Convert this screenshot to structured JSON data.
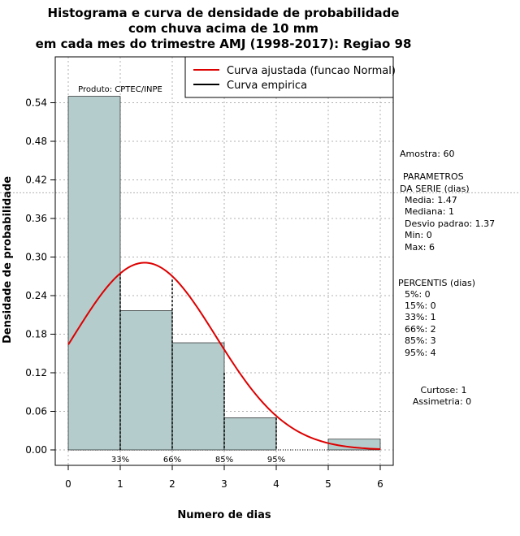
{
  "chart_data": {
    "type": "bar",
    "title_lines": [
      "Histograma e curva de densidade de probabilidade",
      "com chuva acima de 10 mm",
      "em cada mes do trimestre AMJ (1998-2017): Regiao 98"
    ],
    "xlabel": "Numero de dias",
    "ylabel": "Densidade de probabilidade",
    "xlim": [
      0,
      6
    ],
    "ylim": [
      0,
      0.6
    ],
    "x_ticks": [
      "0",
      "1",
      "2",
      "3",
      "4",
      "5",
      "6"
    ],
    "y_ticks": [
      "0.00",
      "0.06",
      "0.12",
      "0.18",
      "0.24",
      "0.30",
      "0.36",
      "0.42",
      "0.48",
      "0.54"
    ],
    "bins": [
      {
        "x0": 0,
        "x1": 1,
        "density": 0.55
      },
      {
        "x0": 1,
        "x1": 2,
        "density": 0.2167
      },
      {
        "x0": 2,
        "x1": 3,
        "density": 0.1667
      },
      {
        "x0": 3,
        "x1": 4,
        "density": 0.05
      },
      {
        "x0": 4,
        "x1": 5,
        "density": 0.0
      },
      {
        "x0": 5,
        "x1": 6,
        "density": 0.0167
      }
    ],
    "normal_fit": {
      "mean": 1.47,
      "sd": 1.37
    },
    "empirical_curve": [
      {
        "x": 1,
        "y": 0.275
      },
      {
        "x": 2,
        "y": 0.265
      },
      {
        "x": 3,
        "y": 0.12
      },
      {
        "x": 4,
        "y": 0.05
      }
    ],
    "percentile_markers": [
      {
        "x": 1,
        "label": "33%"
      },
      {
        "x": 2,
        "label": "66%"
      },
      {
        "x": 3,
        "label": "85%"
      },
      {
        "x": 4,
        "label": "95%"
      }
    ],
    "h_reference_line": 0.4,
    "grid": true,
    "colors": {
      "bar_fill": "#b5cccc",
      "fit_line": "#dd0000",
      "empirical_line": "#000000",
      "grid": "#b0b0b0"
    },
    "legend": {
      "placement": "top-right",
      "entries": [
        {
          "label": "Curva ajustada (funcao Normal)",
          "color": "#dd0000"
        },
        {
          "label": "Curva empirica",
          "color": "#000000"
        }
      ]
    },
    "product_label": "Produto: CPTEC/INPE"
  },
  "stats_panel": {
    "sample": "Amostra: 60",
    "params_header_1": "PARAMETROS",
    "params_header_2": "DA SERIE (dias)",
    "params": [
      "Media: 1.47",
      "Mediana: 1",
      "Desvio padrao: 1.37",
      "Min: 0",
      "Max: 6"
    ],
    "percentiles_header": "PERCENTIS (dias)",
    "percentiles": [
      "5%: 0",
      "15%: 0",
      "33%: 1",
      "66%: 2",
      "85%: 3",
      "95%: 4"
    ],
    "kurtosis": "Curtose: 1",
    "skewness": "Assimetria: 0"
  }
}
